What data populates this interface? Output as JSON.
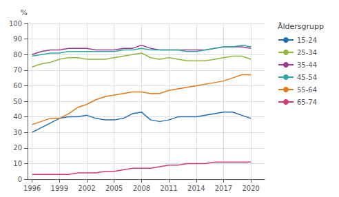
{
  "chart_data": {
    "type": "line",
    "ylabel": "%",
    "legend_title": "Åldersgrupp",
    "x": [
      1996,
      1997,
      1998,
      1999,
      2000,
      2001,
      2002,
      2003,
      2004,
      2005,
      2006,
      2007,
      2008,
      2009,
      2010,
      2011,
      2012,
      2013,
      2014,
      2015,
      2016,
      2017,
      2018,
      2019,
      2020
    ],
    "series": [
      {
        "name": "15-24",
        "color": "#1f6eb5",
        "values": [
          30,
          33,
          36,
          39,
          40,
          40,
          41,
          39,
          38,
          38,
          39,
          42,
          43,
          38,
          37,
          38,
          40,
          40,
          40,
          41,
          42,
          43,
          43,
          41,
          39
        ]
      },
      {
        "name": "25-34",
        "color": "#92b73d",
        "values": [
          72,
          74,
          75,
          77,
          78,
          78,
          77,
          77,
          77,
          78,
          79,
          80,
          81,
          78,
          77,
          78,
          77,
          76,
          76,
          76,
          77,
          78,
          79,
          79,
          77
        ]
      },
      {
        "name": "35-44",
        "color": "#9c3494",
        "values": [
          80,
          82,
          83,
          83,
          84,
          84,
          84,
          83,
          83,
          83,
          84,
          84,
          86,
          84,
          83,
          83,
          83,
          83,
          83,
          83,
          84,
          85,
          85,
          85,
          84
        ]
      },
      {
        "name": "45-54",
        "color": "#2aaba0",
        "values": [
          79,
          80,
          81,
          81,
          82,
          82,
          82,
          82,
          82,
          82,
          83,
          83,
          84,
          83,
          83,
          83,
          83,
          82,
          82,
          83,
          84,
          85,
          85,
          86,
          85
        ]
      },
      {
        "name": "55-64",
        "color": "#e07b1a",
        "values": [
          35,
          37,
          39,
          39,
          42,
          46,
          48,
          51,
          53,
          54,
          55,
          56,
          56,
          55,
          55,
          57,
          58,
          59,
          60,
          61,
          62,
          63,
          65,
          67,
          67
        ]
      },
      {
        "name": "65-74",
        "color": "#d43a72",
        "values": [
          3,
          3,
          3,
          3,
          3,
          4,
          4,
          4,
          5,
          5,
          6,
          7,
          7,
          7,
          8,
          9,
          9,
          10,
          10,
          10,
          11,
          11,
          11,
          11,
          11
        ]
      }
    ],
    "xlim": [
      1995.5,
      2021.5
    ],
    "xticks": [
      1996,
      1999,
      2002,
      2005,
      2008,
      2011,
      2014,
      2017,
      2020
    ],
    "ylim": [
      0,
      100
    ],
    "yticks": [
      0,
      10,
      20,
      30,
      40,
      50,
      60,
      70,
      80,
      90,
      100
    ],
    "grid": true,
    "legend": "right"
  }
}
